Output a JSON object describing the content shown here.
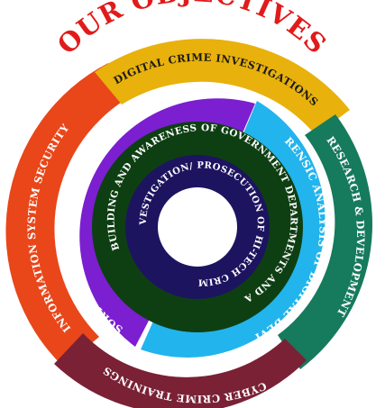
{
  "title": "OUR OBJECTIVES",
  "colors": {
    "title": "#e11b1b",
    "orange": "#e94619",
    "gold": "#e8b10c",
    "teal": "#167a5c",
    "maroon": "#7a2135",
    "purple": "#7b1fd0",
    "sky": "#22b4ec",
    "dark_green": "#0e3f12",
    "navy": "#1d1460",
    "segment_text": "#ffffff",
    "outer_text_dark": "#1a1a1a"
  },
  "segments": {
    "information_system_security": "INFORMATION SYSTEM SECURITY",
    "digital_crime_investigations": "DIGITAL CRIME INVESTIGATIONS",
    "research_development": "RESEARCH & DEVELOPMENT",
    "cyber_crime_trainings": "CYBER CRIME TRAININGS",
    "advisory_role": "ADVISORY ROLE ON INFORMATION SECURITY",
    "forensic_analysis": "FORENSIC ANALYSIS OF DIGITAL DEVICES",
    "capacity_building": "CAPACITY BUILDING AND AWARENESS OF GOVERNMENT DEPARTMENTS AND ACADEMIA",
    "investigation_prosecution": "INVESTIGATION/ PROSECUTION OF HI-TECH CRIMES"
  }
}
